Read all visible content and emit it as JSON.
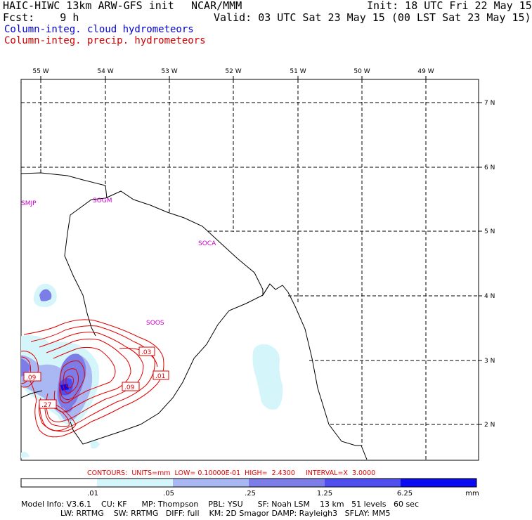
{
  "header": {
    "model": "HAIC-HIWC 13km ARW-GFS init",
    "center": "NCAR/MMM",
    "init": "Init: 18 UTC Fri 22 May 15",
    "fcst": "Fcst:    9 h",
    "valid": "Valid: 03 UTC Sat 23 May 15 (00 LST Sat 23 May 15)",
    "field_cloud": "Column-integ. cloud hydrometeors",
    "field_precip": "Column-integ. precip. hydrometeors"
  },
  "map": {
    "lon_labels": [
      "55 W",
      "54 W",
      "53 W",
      "52 W",
      "51 W",
      "50 W",
      "49 W"
    ],
    "lat_labels": [
      "7 N",
      "6 N",
      "5 N",
      "4 N",
      "3 N",
      "2 N"
    ],
    "stations": [
      "SMJP",
      "SOGM",
      "SOCA",
      "SOOS"
    ],
    "contour_labels": [
      ".03",
      ".01",
      ".09",
      ".09",
      ".27"
    ],
    "colors": {
      "coast": "#000000",
      "grid": "#000000",
      "precip_contour": "#e00000",
      "station": "#cc00cc"
    }
  },
  "contours_line": {
    "text": "CONTOURS:  UNITS=mm  LOW= 0.10000E-01  HIGH=  2.4300     INTERVAL=X  3.0000"
  },
  "colorbar": {
    "ticks": [
      ".01",
      ".05",
      ".25",
      "1.25",
      "6.25"
    ],
    "unit": "mm",
    "colors": [
      "#ffffff",
      "#d4f5fa",
      "#a9b8f3",
      "#7d7de8",
      "#4f4ff0",
      "#0b0bf2"
    ]
  },
  "footer": {
    "line1": "Model Info: V3.6.1    CU: KF      MP: Thompson    PBL: YSU      SF: Noah LSM    13 km   51 levels   60 sec",
    "line2": "                LW: RRTMG    SW: RRTMG   DIFF: full    KM: 2D Smagor DAMP: Rayleigh3   SFLAY: MM5"
  }
}
